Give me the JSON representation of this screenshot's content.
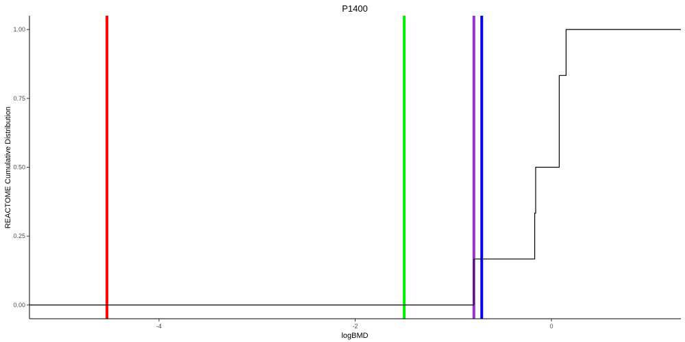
{
  "chart_data": {
    "type": "line",
    "title": "P1400",
    "xlabel": "logBMD",
    "ylabel": "REACTOME Cumulative Distribution",
    "xlim": [
      -5.32,
      1.32
    ],
    "ylim": [
      -0.05,
      1.05
    ],
    "x_ticks": [
      {
        "value": -4,
        "label": "-4"
      },
      {
        "value": -2,
        "label": "-2"
      },
      {
        "value": 0,
        "label": "0"
      }
    ],
    "y_ticks": [
      {
        "value": 0.0,
        "label": "0.00"
      },
      {
        "value": 0.25,
        "label": "0.25"
      },
      {
        "value": 0.5,
        "label": "0.50"
      },
      {
        "value": 0.75,
        "label": "0.75"
      },
      {
        "value": 1.0,
        "label": "1.00"
      }
    ],
    "grid": false,
    "series": [
      {
        "style": "step",
        "color": "#000000",
        "points": [
          {
            "x": -5.32,
            "y": 0.0
          },
          {
            "x": -0.79,
            "y": 0.0
          },
          {
            "x": -0.79,
            "y": 0.1667
          },
          {
            "x": -0.17,
            "y": 0.1667
          },
          {
            "x": -0.17,
            "y": 0.3333
          },
          {
            "x": -0.16,
            "y": 0.3333
          },
          {
            "x": -0.16,
            "y": 0.5
          },
          {
            "x": 0.08,
            "y": 0.5
          },
          {
            "x": 0.08,
            "y": 0.8333
          },
          {
            "x": 0.15,
            "y": 0.8333
          },
          {
            "x": 0.15,
            "y": 1.0
          },
          {
            "x": 1.32,
            "y": 1.0
          }
        ]
      }
    ],
    "vlines": [
      {
        "x": -4.53,
        "color": "#ff0000"
      },
      {
        "x": -1.5,
        "color": "#00ee00"
      },
      {
        "x": -0.79,
        "color": "#9932cc"
      },
      {
        "x": -0.71,
        "color": "#0000ff"
      }
    ]
  }
}
